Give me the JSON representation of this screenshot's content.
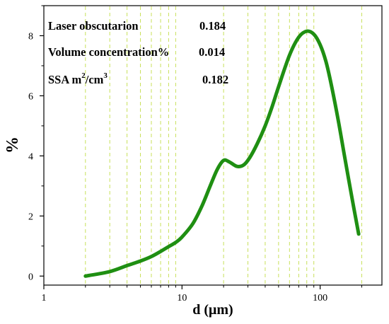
{
  "chart_data": {
    "type": "line",
    "xscale": "log",
    "xlim": [
      1,
      280
    ],
    "ylim": [
      -0.3,
      9.0
    ],
    "xlabel": "d (μm)",
    "ylabel": "%",
    "x_ticks": [
      {
        "value": 1,
        "label": "1"
      },
      {
        "value": 10,
        "label": "10"
      },
      {
        "value": 100,
        "label": "100"
      }
    ],
    "y_ticks": [
      {
        "value": 0,
        "label": "0"
      },
      {
        "value": 2,
        "label": "2"
      },
      {
        "value": 4,
        "label": "4"
      },
      {
        "value": 6,
        "label": "6"
      },
      {
        "value": 8,
        "label": "8"
      }
    ],
    "grid_lines_x": [
      2,
      3,
      4,
      5,
      6,
      7,
      8,
      9,
      20,
      30,
      40,
      50,
      60,
      70,
      80,
      90,
      200
    ],
    "series": [
      {
        "color": "#1f8f12",
        "x": [
          2,
          3,
          4,
          5,
          6,
          7,
          8,
          9,
          10,
          12,
          14,
          16,
          18,
          20,
          22,
          25,
          28,
          31,
          35,
          40,
          45,
          50,
          60,
          70,
          80,
          90,
          100,
          110,
          120,
          135,
          150,
          170,
          190
        ],
        "y": [
          0.0,
          0.15,
          0.35,
          0.5,
          0.65,
          0.82,
          0.98,
          1.12,
          1.3,
          1.75,
          2.35,
          3.0,
          3.55,
          3.85,
          3.8,
          3.65,
          3.7,
          3.95,
          4.4,
          5.0,
          5.65,
          6.3,
          7.35,
          7.95,
          8.15,
          8.05,
          7.7,
          7.15,
          6.4,
          5.2,
          4.0,
          2.6,
          1.4
        ]
      }
    ],
    "annotations": [
      {
        "label": "Laser obscutarion",
        "value": "0.184"
      },
      {
        "label": "Volume concentration%",
        "value": "0.014"
      },
      {
        "label": "SSA m",
        "sup1": "2",
        "mid": "/cm",
        "sup2": "3",
        "value": "0.182"
      }
    ],
    "colors": {
      "line": "#1f8f12",
      "grid": "#c8e05a",
      "axis": "#000000"
    }
  }
}
